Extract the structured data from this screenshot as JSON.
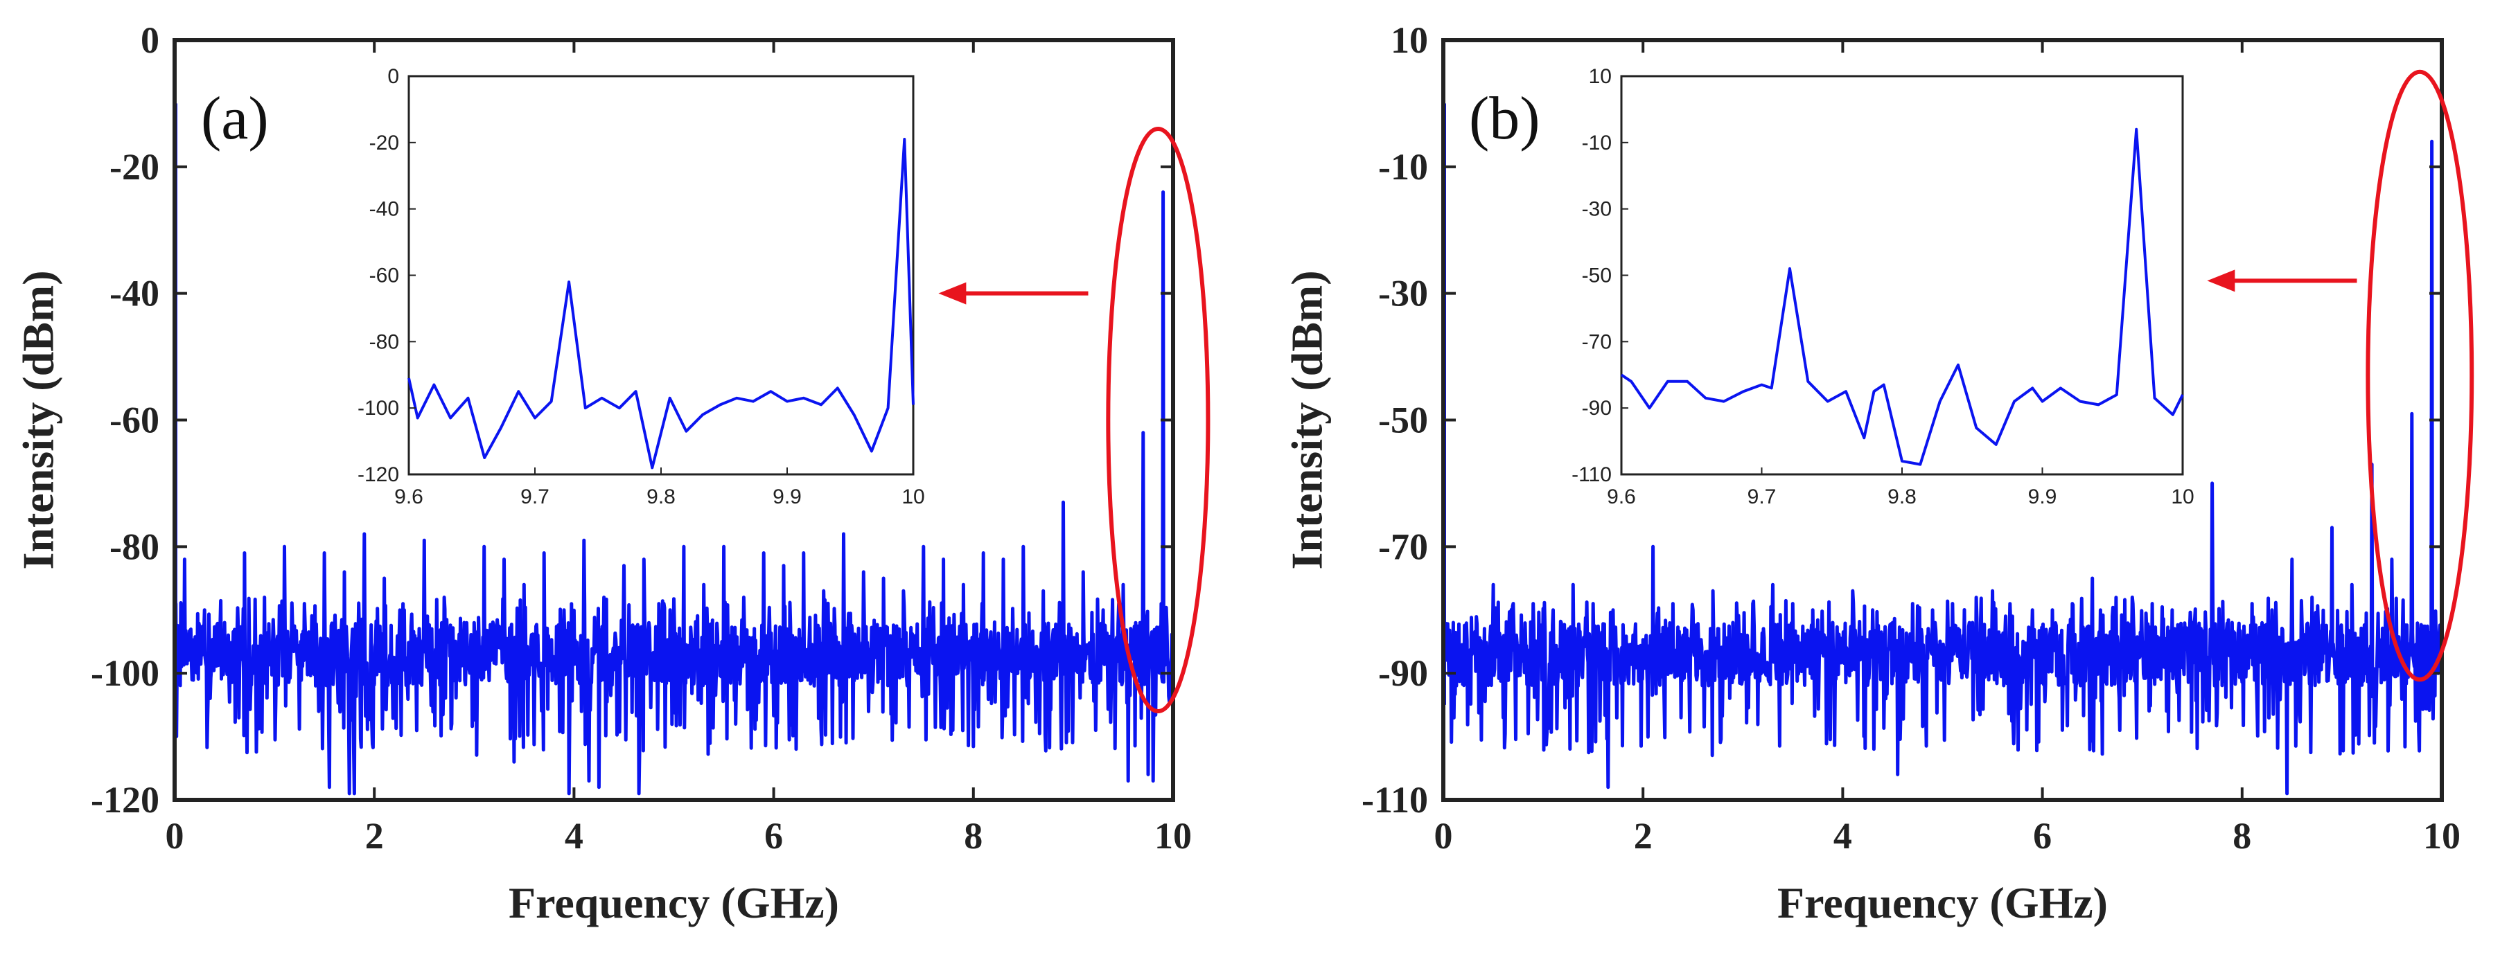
{
  "colors": {
    "trace": "#0a14f0",
    "annotation": "#e8141e",
    "axis": "#222222"
  },
  "chart_data": [
    {
      "type": "line",
      "panel_label": "(a)",
      "xlabel": "Frequency (GHz)",
      "ylabel": "Intensity (dBm)",
      "xlim": [
        0,
        10
      ],
      "ylim": [
        -120,
        0
      ],
      "xticks": [
        "0",
        "2",
        "4",
        "6",
        "8",
        "10"
      ],
      "yticks": [
        "0",
        "-20",
        "-40",
        "-60",
        "-80",
        "-100",
        "-120"
      ],
      "noise_floor": -97,
      "edge_peak": {
        "x": 0.0,
        "y": -10
      },
      "peaks": [
        {
          "x": 0.1,
          "y": -82
        },
        {
          "x": 0.3,
          "y": -90
        },
        {
          "x": 0.5,
          "y": -92
        },
        {
          "x": 0.7,
          "y": -81
        },
        {
          "x": 0.9,
          "y": -88
        },
        {
          "x": 1.1,
          "y": -80
        },
        {
          "x": 1.3,
          "y": -89
        },
        {
          "x": 1.5,
          "y": -81
        },
        {
          "x": 1.7,
          "y": -84
        },
        {
          "x": 1.9,
          "y": -78
        },
        {
          "x": 2.1,
          "y": -85
        },
        {
          "x": 2.3,
          "y": -90
        },
        {
          "x": 2.5,
          "y": -79
        },
        {
          "x": 2.7,
          "y": -88
        },
        {
          "x": 2.9,
          "y": -92
        },
        {
          "x": 3.1,
          "y": -80
        },
        {
          "x": 3.3,
          "y": -82
        },
        {
          "x": 3.5,
          "y": -86
        },
        {
          "x": 3.7,
          "y": -81
        },
        {
          "x": 3.9,
          "y": -90
        },
        {
          "x": 4.1,
          "y": -79
        },
        {
          "x": 4.3,
          "y": -88
        },
        {
          "x": 4.5,
          "y": -83
        },
        {
          "x": 4.7,
          "y": -82
        },
        {
          "x": 4.9,
          "y": -89
        },
        {
          "x": 5.1,
          "y": -80
        },
        {
          "x": 5.3,
          "y": -86
        },
        {
          "x": 5.5,
          "y": -80
        },
        {
          "x": 5.7,
          "y": -88
        },
        {
          "x": 5.9,
          "y": -81
        },
        {
          "x": 6.1,
          "y": -83
        },
        {
          "x": 6.3,
          "y": -81
        },
        {
          "x": 6.5,
          "y": -87
        },
        {
          "x": 6.7,
          "y": -78
        },
        {
          "x": 6.9,
          "y": -84
        },
        {
          "x": 7.1,
          "y": -85
        },
        {
          "x": 7.3,
          "y": -87
        },
        {
          "x": 7.5,
          "y": -80
        },
        {
          "x": 7.7,
          "y": -82
        },
        {
          "x": 7.9,
          "y": -86
        },
        {
          "x": 8.1,
          "y": -81
        },
        {
          "x": 8.3,
          "y": -82
        },
        {
          "x": 8.5,
          "y": -80
        },
        {
          "x": 8.7,
          "y": -87
        },
        {
          "x": 8.9,
          "y": -73
        },
        {
          "x": 9.1,
          "y": -84
        },
        {
          "x": 9.3,
          "y": -90
        },
        {
          "x": 9.5,
          "y": -86
        },
        {
          "x": 9.7,
          "y": -62
        },
        {
          "x": 9.9,
          "y": -24
        }
      ],
      "dips": [
        {
          "x": 1.55,
          "y": -118
        },
        {
          "x": 1.75,
          "y": -119
        },
        {
          "x": 1.8,
          "y": -119
        },
        {
          "x": 3.1,
          "y": -119
        },
        {
          "x": 3.4,
          "y": -114
        },
        {
          "x": 3.95,
          "y": -119
        },
        {
          "x": 4.15,
          "y": -117
        },
        {
          "x": 4.25,
          "y": -118
        },
        {
          "x": 4.65,
          "y": -119
        },
        {
          "x": 5.3,
          "y": -114
        },
        {
          "x": 9.1,
          "y": -114
        },
        {
          "x": 9.55,
          "y": -117
        },
        {
          "x": 9.75,
          "y": -116
        },
        {
          "x": 9.8,
          "y": -117
        }
      ],
      "highlight": {
        "x_center": 9.85,
        "y_center": -60,
        "x_radius": 0.5,
        "y_radius": 46
      },
      "arrow": {
        "from": [
          9.15,
          -40
        ],
        "to": [
          7.65,
          -40
        ]
      },
      "inset": {
        "xlim": [
          9.6,
          10
        ],
        "ylim": [
          -120,
          0
        ],
        "xticks": [
          "9.6",
          "9.7",
          "9.8",
          "9.9",
          "10"
        ],
        "yticks": [
          "0",
          "-20",
          "-40",
          "-60",
          "-80",
          "-100",
          "-120"
        ],
        "x": [
          9.6,
          9.607,
          9.62,
          9.633,
          9.647,
          9.66,
          9.673,
          9.687,
          9.7,
          9.713,
          9.727,
          9.74,
          9.753,
          9.767,
          9.78,
          9.793,
          9.807,
          9.82,
          9.833,
          9.847,
          9.86,
          9.873,
          9.887,
          9.9,
          9.913,
          9.927,
          9.94,
          9.953,
          9.967,
          9.98,
          9.993,
          10
        ],
        "y": [
          -91,
          -103,
          -93,
          -103,
          -97,
          -115,
          -106,
          -95,
          -103,
          -98,
          -62,
          -100,
          -97,
          -100,
          -95,
          -118,
          -97,
          -107,
          -102,
          -99,
          -97,
          -98,
          -95,
          -98,
          -97,
          -99,
          -94,
          -102,
          -113,
          -100,
          -19,
          -99
        ]
      }
    },
    {
      "type": "line",
      "panel_label": "(b)",
      "xlabel": "Frequency (GHz)",
      "ylabel": "Intensity (dBm)",
      "xlim": [
        0,
        10
      ],
      "ylim": [
        -110,
        10
      ],
      "xticks": [
        "0",
        "2",
        "4",
        "6",
        "8",
        "10"
      ],
      "yticks": [
        "10",
        "-10",
        "-30",
        "-50",
        "-70",
        "-90",
        "-110"
      ],
      "noise_floor": -87,
      "edge_peak": {
        "x": 0.0,
        "y": 0
      },
      "peaks": [
        {
          "x": 0.1,
          "y": -82
        },
        {
          "x": 0.3,
          "y": -84
        },
        {
          "x": 0.5,
          "y": -76
        },
        {
          "x": 0.7,
          "y": -79
        },
        {
          "x": 0.9,
          "y": -79
        },
        {
          "x": 1.1,
          "y": -80
        },
        {
          "x": 1.3,
          "y": -76
        },
        {
          "x": 1.5,
          "y": -79
        },
        {
          "x": 1.7,
          "y": -80
        },
        {
          "x": 1.9,
          "y": -84
        },
        {
          "x": 2.1,
          "y": -70
        },
        {
          "x": 2.3,
          "y": -79
        },
        {
          "x": 2.5,
          "y": -80
        },
        {
          "x": 2.7,
          "y": -77
        },
        {
          "x": 2.9,
          "y": -82
        },
        {
          "x": 3.1,
          "y": -79
        },
        {
          "x": 3.3,
          "y": -76
        },
        {
          "x": 3.5,
          "y": -79
        },
        {
          "x": 3.7,
          "y": -80
        },
        {
          "x": 3.9,
          "y": -82
        },
        {
          "x": 4.1,
          "y": -77
        },
        {
          "x": 4.3,
          "y": -80
        },
        {
          "x": 4.5,
          "y": -82
        },
        {
          "x": 4.7,
          "y": -79
        },
        {
          "x": 4.9,
          "y": -80
        },
        {
          "x": 5.1,
          "y": -79
        },
        {
          "x": 5.3,
          "y": -82
        },
        {
          "x": 5.5,
          "y": -77
        },
        {
          "x": 5.7,
          "y": -81
        },
        {
          "x": 5.9,
          "y": -80
        },
        {
          "x": 6.1,
          "y": -80
        },
        {
          "x": 6.3,
          "y": -79
        },
        {
          "x": 6.5,
          "y": -75
        },
        {
          "x": 6.7,
          "y": -81
        },
        {
          "x": 6.9,
          "y": -78
        },
        {
          "x": 7.1,
          "y": -79
        },
        {
          "x": 7.3,
          "y": -80
        },
        {
          "x": 7.5,
          "y": -82
        },
        {
          "x": 7.7,
          "y": -60
        },
        {
          "x": 7.9,
          "y": -82
        },
        {
          "x": 8.1,
          "y": -79
        },
        {
          "x": 8.3,
          "y": -80
        },
        {
          "x": 8.5,
          "y": -72
        },
        {
          "x": 8.7,
          "y": -78
        },
        {
          "x": 8.9,
          "y": -67
        },
        {
          "x": 9.1,
          "y": -76
        },
        {
          "x": 9.3,
          "y": -57
        },
        {
          "x": 9.5,
          "y": -72
        },
        {
          "x": 9.7,
          "y": -49
        },
        {
          "x": 9.9,
          "y": -6
        }
      ],
      "dips": [
        {
          "x": 0.6,
          "y": -97
        },
        {
          "x": 1.65,
          "y": -108
        },
        {
          "x": 3.5,
          "y": -108
        },
        {
          "x": 4.1,
          "y": -99
        },
        {
          "x": 4.55,
          "y": -106
        },
        {
          "x": 6.2,
          "y": -99
        },
        {
          "x": 7.5,
          "y": -106
        },
        {
          "x": 8.45,
          "y": -109
        },
        {
          "x": 9.7,
          "y": -106
        }
      ],
      "highlight": {
        "x_center": 9.78,
        "y_center": -43,
        "x_radius": 0.52,
        "y_radius": 48
      },
      "arrow": {
        "from": [
          9.15,
          -28
        ],
        "to": [
          7.65,
          -28
        ]
      },
      "inset": {
        "xlim": [
          9.6,
          10
        ],
        "ylim": [
          -110,
          10
        ],
        "xticks": [
          "9.6",
          "9.7",
          "9.8",
          "9.9",
          "10"
        ],
        "yticks": [
          "10",
          "-10",
          "-30",
          "-50",
          "-70",
          "-90",
          "-110"
        ],
        "x": [
          9.6,
          9.607,
          9.62,
          9.633,
          9.647,
          9.66,
          9.673,
          9.687,
          9.7,
          9.707,
          9.72,
          9.733,
          9.747,
          9.76,
          9.773,
          9.78,
          9.787,
          9.8,
          9.813,
          9.827,
          9.84,
          9.853,
          9.867,
          9.88,
          9.893,
          9.9,
          9.913,
          9.927,
          9.94,
          9.953,
          9.967,
          9.98,
          9.993,
          10
        ],
        "y": [
          -80,
          -82,
          -90,
          -82,
          -82,
          -87,
          -88,
          -85,
          -83,
          -84,
          -48,
          -82,
          -88,
          -85,
          -99,
          -85,
          -83,
          -106,
          -107,
          -88,
          -77,
          -96,
          -101,
          -88,
          -84,
          -88,
          -84,
          -88,
          -89,
          -86,
          -6,
          -87,
          -92,
          -86
        ]
      }
    }
  ]
}
